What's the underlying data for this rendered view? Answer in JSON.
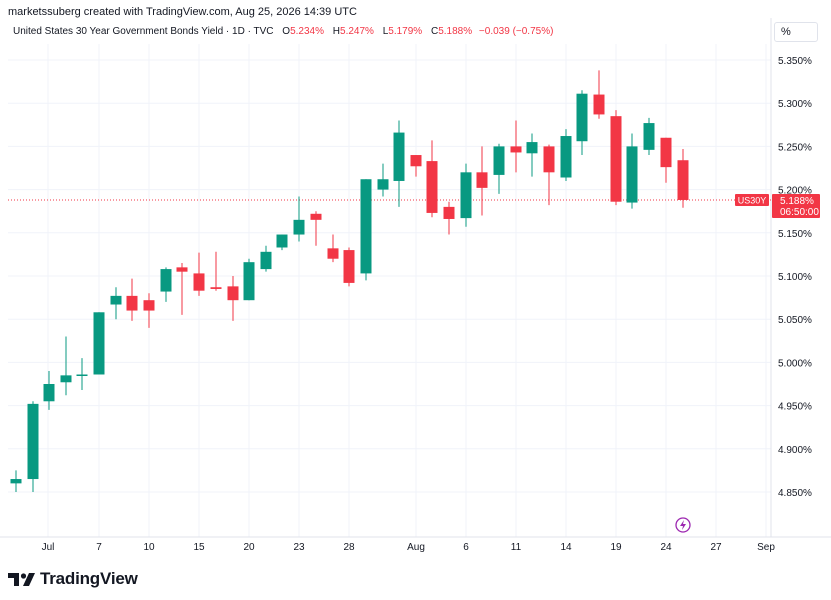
{
  "header": {
    "credit": "marketssuberg created with TradingView.com, Aug 25, 2026 14:39 UTC"
  },
  "legend": {
    "title": "United States 30 Year Government Bonds Yield · 1D · TVC",
    "o_label": "O",
    "o_value": "5.234%",
    "h_label": "H",
    "h_value": "5.247%",
    "l_label": "L",
    "l_value": "5.179%",
    "c_label": "C",
    "c_value": "5.188%",
    "change": "−0.039 (−0.75%)"
  },
  "scale_button": "%",
  "price_tag": {
    "symbol": "US30Y",
    "value": "5.188%",
    "countdown": "06:50:00"
  },
  "footer": {
    "logo_text": "TradingView"
  },
  "colors": {
    "up": "#089981",
    "down": "#f23645",
    "grid": "#f0f3fa",
    "axis_text": "#131722"
  },
  "icons": {
    "logo": "tradingview-logo-icon",
    "flash": "lightning-icon"
  },
  "chart_data": {
    "type": "candlestick",
    "title": "United States 30 Year Government Bonds Yield",
    "ylim": [
      4.81,
      5.37
    ],
    "y_ticks": [
      "5.350%",
      "5.300%",
      "5.250%",
      "5.200%",
      "5.150%",
      "5.100%",
      "5.050%",
      "5.000%",
      "4.950%",
      "4.900%",
      "4.850%"
    ],
    "x_ticks": [
      "Jul",
      "7",
      "10",
      "15",
      "20",
      "23",
      "28",
      "Aug",
      "6",
      "11",
      "14",
      "19",
      "24",
      "27",
      "Sep"
    ],
    "current_price": 5.188,
    "candles": [
      {
        "o": 4.86,
        "h": 4.875,
        "l": 4.85,
        "c": 4.865
      },
      {
        "o": 4.865,
        "h": 4.955,
        "l": 4.85,
        "c": 4.952
      },
      {
        "o": 4.955,
        "h": 4.99,
        "l": 4.945,
        "c": 4.975
      },
      {
        "o": 4.977,
        "h": 5.03,
        "l": 4.962,
        "c": 4.985
      },
      {
        "o": 4.985,
        "h": 5.005,
        "l": 4.968,
        "c": 4.986
      },
      {
        "o": 4.986,
        "h": 5.058,
        "l": 4.986,
        "c": 5.058
      },
      {
        "o": 5.067,
        "h": 5.087,
        "l": 5.05,
        "c": 5.077
      },
      {
        "o": 5.077,
        "h": 5.097,
        "l": 5.048,
        "c": 5.06
      },
      {
        "o": 5.072,
        "h": 5.08,
        "l": 5.04,
        "c": 5.06
      },
      {
        "o": 5.082,
        "h": 5.11,
        "l": 5.07,
        "c": 5.108
      },
      {
        "o": 5.11,
        "h": 5.115,
        "l": 5.055,
        "c": 5.105
      },
      {
        "o": 5.103,
        "h": 5.127,
        "l": 5.077,
        "c": 5.083
      },
      {
        "o": 5.087,
        "h": 5.128,
        "l": 5.083,
        "c": 5.085
      },
      {
        "o": 5.088,
        "h": 5.1,
        "l": 5.048,
        "c": 5.072
      },
      {
        "o": 5.072,
        "h": 5.12,
        "l": 5.072,
        "c": 5.116
      },
      {
        "o": 5.108,
        "h": 5.135,
        "l": 5.105,
        "c": 5.128
      },
      {
        "o": 5.133,
        "h": 5.148,
        "l": 5.13,
        "c": 5.148
      },
      {
        "o": 5.148,
        "h": 5.192,
        "l": 5.14,
        "c": 5.165
      },
      {
        "o": 5.172,
        "h": 5.175,
        "l": 5.135,
        "c": 5.165
      },
      {
        "o": 5.132,
        "h": 5.148,
        "l": 5.116,
        "c": 5.12
      },
      {
        "o": 5.13,
        "h": 5.133,
        "l": 5.088,
        "c": 5.092
      },
      {
        "o": 5.103,
        "h": 5.212,
        "l": 5.095,
        "c": 5.212
      },
      {
        "o": 5.2,
        "h": 5.23,
        "l": 5.192,
        "c": 5.212
      },
      {
        "o": 5.21,
        "h": 5.28,
        "l": 5.18,
        "c": 5.266
      },
      {
        "o": 5.24,
        "h": 5.24,
        "l": 5.215,
        "c": 5.227
      },
      {
        "o": 5.233,
        "h": 5.257,
        "l": 5.168,
        "c": 5.173
      },
      {
        "o": 5.18,
        "h": 5.186,
        "l": 5.148,
        "c": 5.166
      },
      {
        "o": 5.167,
        "h": 5.23,
        "l": 5.157,
        "c": 5.22
      },
      {
        "o": 5.22,
        "h": 5.25,
        "l": 5.17,
        "c": 5.202
      },
      {
        "o": 5.217,
        "h": 5.253,
        "l": 5.195,
        "c": 5.25
      },
      {
        "o": 5.25,
        "h": 5.28,
        "l": 5.22,
        "c": 5.243
      },
      {
        "o": 5.242,
        "h": 5.265,
        "l": 5.215,
        "c": 5.255
      },
      {
        "o": 5.25,
        "h": 5.252,
        "l": 5.182,
        "c": 5.22
      },
      {
        "o": 5.214,
        "h": 5.27,
        "l": 5.21,
        "c": 5.262
      },
      {
        "o": 5.256,
        "h": 5.315,
        "l": 5.24,
        "c": 5.311
      },
      {
        "o": 5.31,
        "h": 5.338,
        "l": 5.282,
        "c": 5.287
      },
      {
        "o": 5.285,
        "h": 5.292,
        "l": 5.182,
        "c": 5.186
      },
      {
        "o": 5.185,
        "h": 5.265,
        "l": 5.178,
        "c": 5.25
      },
      {
        "o": 5.246,
        "h": 5.283,
        "l": 5.24,
        "c": 5.277
      },
      {
        "o": 5.26,
        "h": 5.26,
        "l": 5.208,
        "c": 5.226
      },
      {
        "o": 5.234,
        "h": 5.247,
        "l": 5.179,
        "c": 5.188
      }
    ]
  }
}
